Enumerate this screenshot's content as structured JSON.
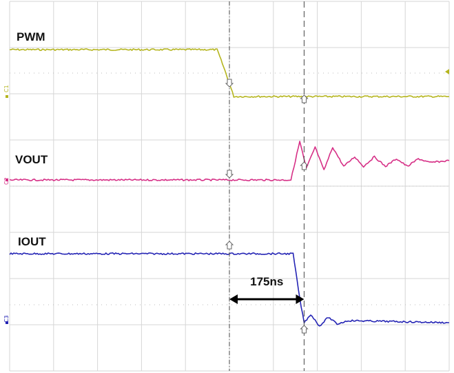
{
  "chart_data": {
    "type": "line",
    "title": "",
    "xlabel": "",
    "ylabel": "",
    "grid": true,
    "grid_divisions": {
      "x": 10,
      "y": 8
    },
    "series": [
      {
        "name": "PWM",
        "channel": "C1",
        "color": "#b5b51e",
        "trace": [
          [
            0,
            1
          ],
          [
            4.72,
            1
          ],
          [
            4.9,
            0.55
          ],
          [
            5.1,
            0
          ],
          [
            10,
            0
          ]
        ]
      },
      {
        "name": "VOUT",
        "channel": "C2",
        "color": "#d62f86",
        "trace": [
          [
            0,
            0
          ],
          [
            6.4,
            0
          ],
          [
            6.6,
            1
          ],
          [
            6.75,
            0.3
          ],
          [
            6.95,
            0.85
          ],
          [
            7.15,
            0.25
          ],
          [
            7.35,
            0.85
          ],
          [
            7.6,
            0.35
          ],
          [
            7.85,
            0.6
          ],
          [
            8.05,
            0.35
          ],
          [
            8.3,
            0.6
          ],
          [
            8.55,
            0.35
          ],
          [
            8.8,
            0.55
          ],
          [
            9.05,
            0.35
          ],
          [
            9.3,
            0.55
          ],
          [
            9.55,
            0.45
          ],
          [
            10,
            0.5
          ]
        ]
      },
      {
        "name": "IOUT",
        "channel": "C3",
        "color": "#2323b4",
        "trace": [
          [
            0,
            1
          ],
          [
            6.45,
            1
          ],
          [
            6.6,
            0.35
          ],
          [
            6.7,
            0
          ],
          [
            6.85,
            0.12
          ],
          [
            7.05,
            -0.05
          ],
          [
            7.25,
            0.08
          ],
          [
            7.45,
            -0.02
          ],
          [
            7.7,
            0.03
          ],
          [
            10,
            0
          ]
        ]
      }
    ],
    "annotations": [
      {
        "text": "175ns",
        "type": "interval-arrow",
        "from_x": 5.0,
        "to_x": 6.7
      }
    ],
    "cursors_x": [
      5.0,
      6.7
    ]
  }
}
